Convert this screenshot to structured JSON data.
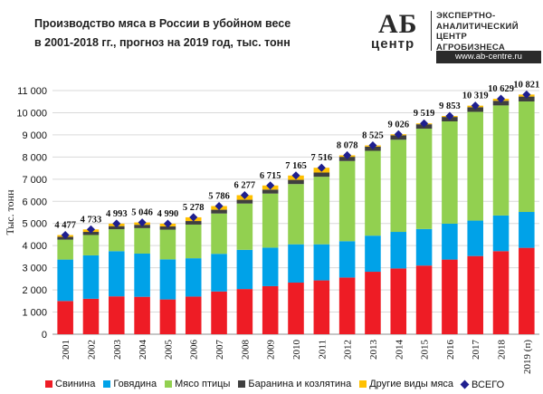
{
  "title_lines": [
    "Производство  мяса в России в убойном весе",
    "в 2001-2018 гг., прогноз  на 2019 год, тыс. тонн"
  ],
  "logo": {
    "ab": "АБ",
    "center": "центр",
    "lines": [
      "ЭКСПЕРТНО-",
      "АНАЛИТИЧЕСКИЙ",
      "ЦЕНТР",
      "АГРОБИЗНЕСА"
    ],
    "url": "www.ab-centre.ru"
  },
  "colors": {
    "pork": "#ee1c25",
    "beef": "#00a2e8",
    "poultry": "#92d050",
    "lamb": "#3f3f3f",
    "other": "#ffc000",
    "total": "#1f1f8f"
  },
  "chart_data": {
    "type": "bar",
    "stacked": true,
    "ylabel": "Тыс. тонн",
    "ylim": [
      0,
      11000
    ],
    "yticks": [
      "0",
      "1 000",
      "2 000",
      "3 000",
      "4 000",
      "5 000",
      "6 000",
      "7 000",
      "8 000",
      "9 000",
      "10 000",
      "11 000"
    ],
    "grid": true,
    "legend_position": "bottom",
    "categories": [
      "2001",
      "2002",
      "2003",
      "2004",
      "2005",
      "2006",
      "2007",
      "2008",
      "2009",
      "2010",
      "2011",
      "2012",
      "2013",
      "2014",
      "2015",
      "2016",
      "2017",
      "2018",
      "2019 (п)"
    ],
    "series": [
      {
        "name": "Свинина",
        "key": "pork",
        "values": [
          1500,
          1600,
          1710,
          1690,
          1570,
          1700,
          1930,
          2040,
          2170,
          2330,
          2430,
          2560,
          2820,
          2970,
          3100,
          3370,
          3530,
          3750,
          3900
        ]
      },
      {
        "name": "Говядина",
        "key": "beef",
        "values": [
          1870,
          1960,
          2040,
          1950,
          1810,
          1730,
          1700,
          1770,
          1740,
          1730,
          1630,
          1640,
          1630,
          1650,
          1650,
          1620,
          1600,
          1610,
          1620
        ]
      },
      {
        "name": "Мясо птицы",
        "key": "poultry",
        "values": [
          900,
          920,
          990,
          1150,
          1340,
          1520,
          1820,
          2090,
          2440,
          2720,
          3050,
          3620,
          3830,
          4160,
          4530,
          4620,
          4910,
          4970,
          4990
        ]
      },
      {
        "name": "Баранина и козлятина",
        "key": "lamb",
        "values": [
          130,
          140,
          140,
          150,
          150,
          160,
          170,
          170,
          180,
          190,
          190,
          190,
          190,
          200,
          200,
          200,
          210,
          210,
          220
        ]
      },
      {
        "name": "Другие виды мяса",
        "key": "other",
        "values": [
          77,
          113,
          113,
          106,
          120,
          168,
          166,
          207,
          185,
          195,
          216,
          68,
          55,
          46,
          39,
          43,
          69,
          89,
          91
        ]
      }
    ],
    "total": {
      "name": "ВСЕГО",
      "values": [
        4477,
        4733,
        4993,
        5046,
        4990,
        5278,
        5786,
        6277,
        6715,
        7165,
        7516,
        8078,
        8525,
        9026,
        9519,
        9853,
        10319,
        10629,
        10821
      ],
      "labels": [
        "4 477",
        "4 733",
        "4 993",
        "5 046",
        "4 990",
        "5 278",
        "5 786",
        "6 277",
        "6 715",
        "7 165",
        "7 516",
        "8 078",
        "8 525",
        "9 026",
        "9 519",
        "9 853",
        "10 319",
        "10 629",
        "10 821"
      ]
    }
  }
}
